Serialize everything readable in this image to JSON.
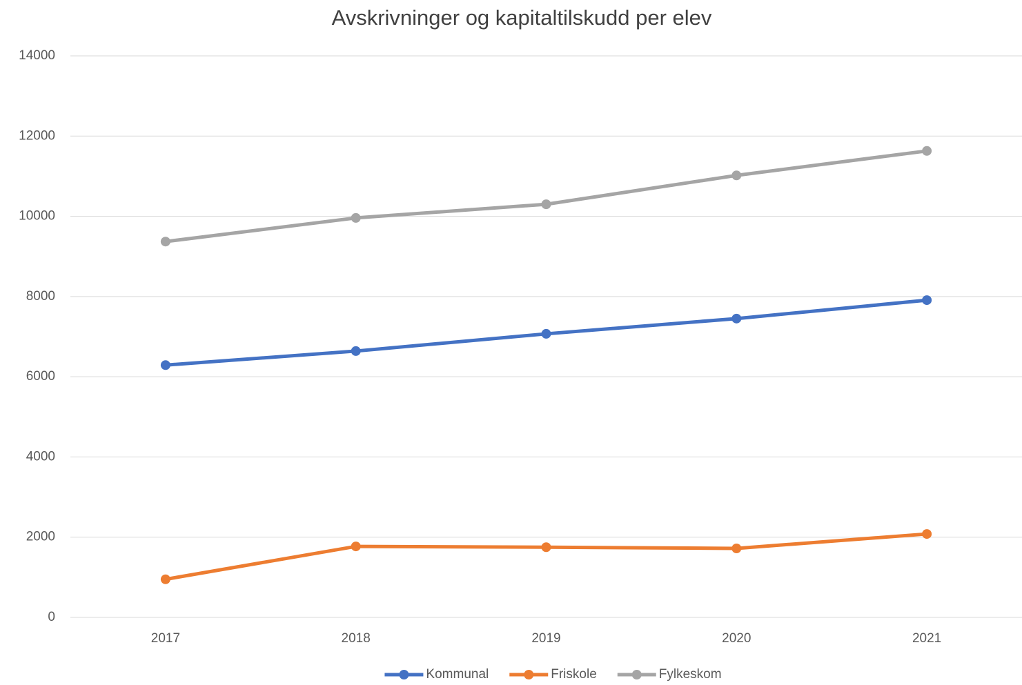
{
  "chart_data": {
    "type": "line",
    "title": "Avskrivninger og kapitaltilskudd per elev",
    "categories": [
      "2017",
      "2018",
      "2019",
      "2020",
      "2021"
    ],
    "series": [
      {
        "name": "Kommunal",
        "color": "#4472c4",
        "values": [
          6290,
          6640,
          7070,
          7450,
          7910
        ]
      },
      {
        "name": "Friskole",
        "color": "#ed7d31",
        "values": [
          950,
          1770,
          1750,
          1720,
          2080
        ]
      },
      {
        "name": "Fylkeskom",
        "color": "#a5a5a5",
        "values": [
          9370,
          9960,
          10300,
          11020,
          11630
        ]
      }
    ],
    "ylim": [
      0,
      14000
    ],
    "yticks": [
      0,
      2000,
      4000,
      6000,
      8000,
      10000,
      12000,
      14000
    ],
    "grid": true,
    "legend": "bottom"
  }
}
